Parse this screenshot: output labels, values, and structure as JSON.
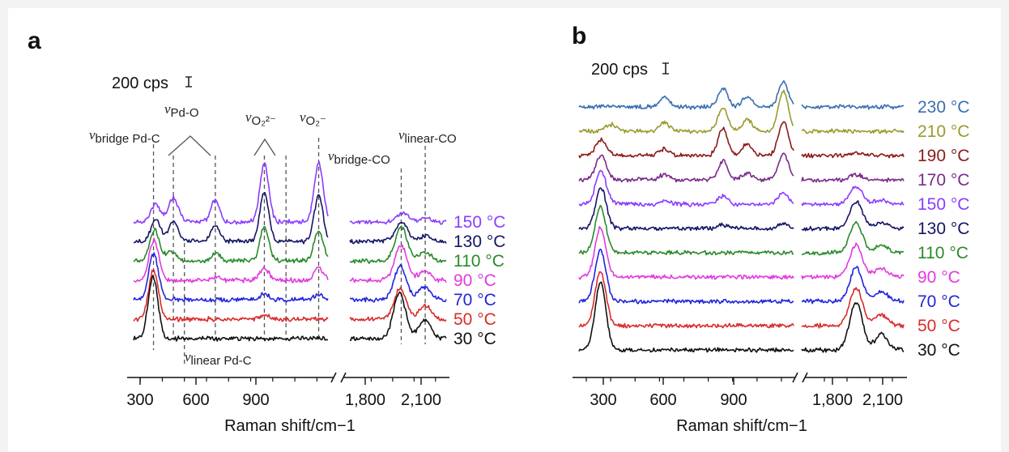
{
  "chart_data": [
    {
      "panel": "a",
      "type": "line",
      "scale_bar": "200 cps",
      "xlabel": "Raman shift/cm−1",
      "x_ticks": [
        "300",
        "600",
        "900",
        "1,800",
        "2,100"
      ],
      "x_segments": [
        [
          270,
          1150
        ],
        [
          1700,
          2150
        ]
      ],
      "series": [
        {
          "name": "150 °C",
          "color": "#8b3dff",
          "peaks": [
            [
              370,
              55
            ],
            [
              450,
              80
            ],
            [
              640,
              70
            ],
            [
              862,
              190
            ],
            [
              1108,
              190
            ],
            [
              1945,
              28
            ],
            [
              2052,
              12
            ]
          ]
        },
        {
          "name": "130 °C",
          "color": "#151566",
          "peaks": [
            [
              370,
              70
            ],
            [
              450,
              65
            ],
            [
              640,
              55
            ],
            [
              862,
              160
            ],
            [
              1108,
              150
            ],
            [
              1942,
              60
            ],
            [
              2052,
              18
            ]
          ]
        },
        {
          "name": "110 °C",
          "color": "#2a8a2a",
          "peaks": [
            [
              365,
              100
            ],
            [
              440,
              30
            ],
            [
              640,
              25
            ],
            [
              862,
              110
            ],
            [
              1108,
              100
            ],
            [
              1940,
              110
            ],
            [
              2050,
              28
            ]
          ]
        },
        {
          "name": "90 °C",
          "color": "#e23be0",
          "peaks": [
            [
              362,
              130
            ],
            [
              640,
              10
            ],
            [
              862,
              40
            ],
            [
              1108,
              40
            ],
            [
              1938,
              115
            ],
            [
              2050,
              30
            ]
          ]
        },
        {
          "name": "70 °C",
          "color": "#2323dd",
          "peaks": [
            [
              360,
              150
            ],
            [
              862,
              20
            ],
            [
              1108,
              15
            ],
            [
              1935,
              110
            ],
            [
              2050,
              40
            ]
          ]
        },
        {
          "name": "50 °C",
          "color": "#d92b2b",
          "peaks": [
            [
              360,
              160
            ],
            [
              862,
              15
            ],
            [
              1935,
              100
            ],
            [
              2050,
              45
            ]
          ]
        },
        {
          "name": "30 °C",
          "color": "#111111",
          "peaks": [
            [
              358,
              200
            ],
            [
              1932,
              150
            ],
            [
              2050,
              60
            ]
          ]
        }
      ],
      "annotations": [
        {
          "v": "ν",
          "sub": "bridge Pd-C"
        },
        {
          "v": "ν",
          "sub": "Pd-O"
        },
        {
          "v": "ν",
          "sub": "O₂²⁻"
        },
        {
          "v": "ν",
          "sub": "O₂⁻"
        },
        {
          "v": "ν",
          "sub": "bridge-CO"
        },
        {
          "v": "ν",
          "sub": "linear-CO"
        },
        {
          "v": "ν",
          "sub": "linear Pd-C"
        }
      ]
    },
    {
      "panel": "b",
      "type": "line",
      "scale_bar": "200 cps",
      "xlabel": "Raman shift/cm−1",
      "x_ticks": [
        "300",
        "600",
        "900",
        "1,800",
        "2,100"
      ],
      "x_segments": [
        [
          270,
          1150
        ],
        [
          1700,
          2150
        ]
      ],
      "series": [
        {
          "name": "230 °C",
          "color": "#3a6fb0",
          "peaks": [
            [
              620,
              30
            ],
            [
              860,
              55
            ],
            [
              960,
              30
            ],
            [
              1108,
              75
            ]
          ]
        },
        {
          "name": "210 °C",
          "color": "#9c9a2e",
          "peaks": [
            [
              400,
              20
            ],
            [
              620,
              25
            ],
            [
              860,
              70
            ],
            [
              960,
              35
            ],
            [
              1108,
              120
            ]
          ]
        },
        {
          "name": "190 °C",
          "color": "#8b1a1a",
          "peaks": [
            [
              360,
              45
            ],
            [
              620,
              20
            ],
            [
              860,
              80
            ],
            [
              960,
              35
            ],
            [
              1108,
              100
            ],
            [
              1940,
              8
            ]
          ]
        },
        {
          "name": "170 °C",
          "color": "#7a2a8a",
          "peaks": [
            [
              360,
              70
            ],
            [
              620,
              15
            ],
            [
              860,
              55
            ],
            [
              960,
              20
            ],
            [
              1108,
              80
            ],
            [
              1940,
              15
            ]
          ]
        },
        {
          "name": "150 °C",
          "color": "#8b3dff",
          "peaks": [
            [
              360,
              95
            ],
            [
              620,
              10
            ],
            [
              860,
              25
            ],
            [
              1108,
              35
            ],
            [
              1940,
              50
            ],
            [
              2052,
              12
            ]
          ]
        },
        {
          "name": "130 °C",
          "color": "#151566",
          "peaks": [
            [
              360,
              120
            ],
            [
              860,
              10
            ],
            [
              1108,
              15
            ],
            [
              1940,
              80
            ],
            [
              2052,
              18
            ]
          ]
        },
        {
          "name": "110 °C",
          "color": "#2a8a2a",
          "peaks": [
            [
              358,
              135
            ],
            [
              1940,
              90
            ],
            [
              2052,
              22
            ]
          ]
        },
        {
          "name": "90 °C",
          "color": "#e23be0",
          "peaks": [
            [
              358,
              145
            ],
            [
              1940,
              95
            ],
            [
              2052,
              25
            ]
          ]
        },
        {
          "name": "70 °C",
          "color": "#2323dd",
          "peaks": [
            [
              358,
              150
            ],
            [
              1940,
              100
            ],
            [
              2052,
              28
            ]
          ]
        },
        {
          "name": "50 °C",
          "color": "#d92b2b",
          "peaks": [
            [
              358,
              160
            ],
            [
              1940,
              110
            ],
            [
              2052,
              30
            ]
          ]
        },
        {
          "name": "30 °C",
          "color": "#111111",
          "peaks": [
            [
              358,
              200
            ],
            [
              1940,
              140
            ],
            [
              2052,
              45
            ]
          ]
        }
      ]
    }
  ]
}
